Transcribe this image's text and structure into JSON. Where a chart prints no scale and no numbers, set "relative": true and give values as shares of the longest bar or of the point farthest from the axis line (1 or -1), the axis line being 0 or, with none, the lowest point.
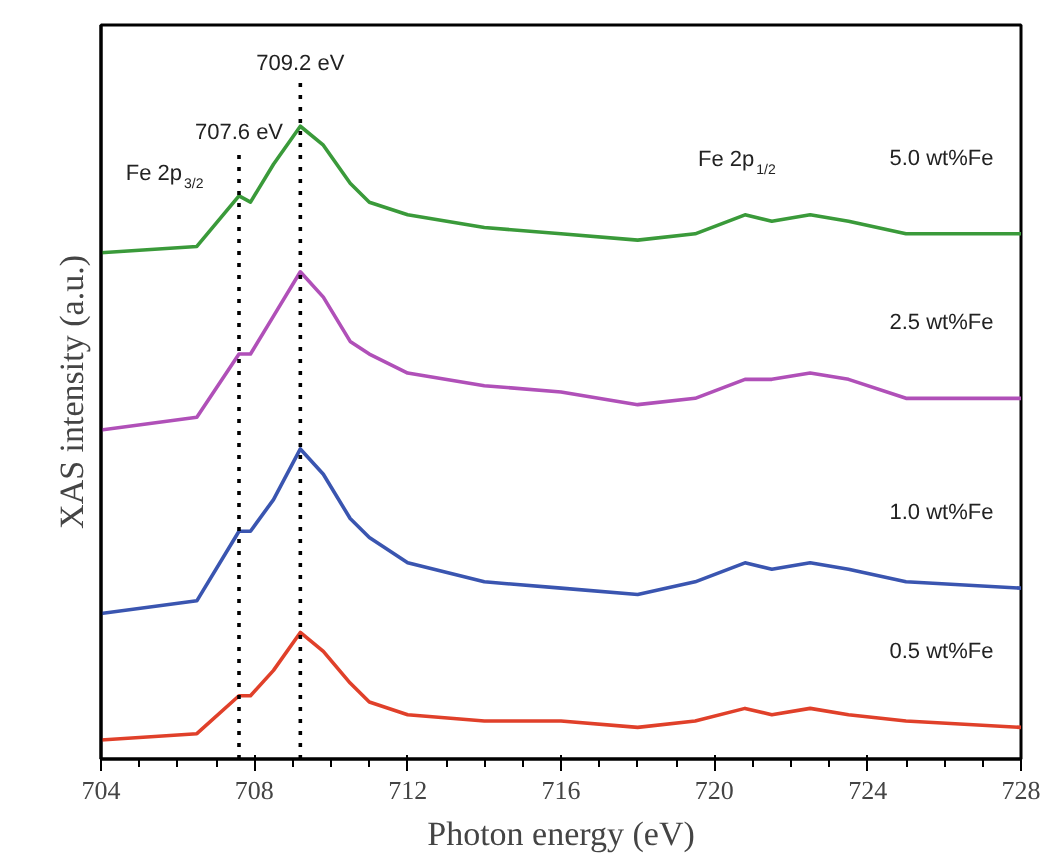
{
  "chart_data": {
    "type": "line",
    "relative": true,
    "xlabel": "Photon energy (eV)",
    "ylabel": "XAS intensity (a.u.)",
    "x": [
      704,
      706.5,
      707.6,
      707.9,
      708.5,
      709.2,
      709.8,
      710.5,
      711,
      712,
      714,
      716,
      718,
      719.5,
      720.8,
      721.5,
      722.5,
      723.5,
      725,
      728
    ],
    "xlim": [
      704,
      728
    ],
    "xticks": [
      704,
      708,
      712,
      716,
      720,
      724,
      728
    ],
    "grid": false,
    "series": [
      {
        "name": "5.0 wt%Fe",
        "color": "#3a9a3a",
        "values": [
          0.8,
          0.81,
          0.89,
          0.88,
          0.94,
          1.0,
          0.97,
          0.91,
          0.88,
          0.86,
          0.84,
          0.83,
          0.82,
          0.83,
          0.86,
          0.85,
          0.86,
          0.85,
          0.83,
          0.83
        ]
      },
      {
        "name": "2.5 wt%Fe",
        "color": "#b050b8",
        "values": [
          0.52,
          0.54,
          0.64,
          0.64,
          0.7,
          0.77,
          0.73,
          0.66,
          0.64,
          0.61,
          0.59,
          0.58,
          0.56,
          0.57,
          0.6,
          0.6,
          0.61,
          0.6,
          0.57,
          0.57
        ]
      },
      {
        "name": "1.0 wt%Fe",
        "color": "#3a55b0",
        "values": [
          0.23,
          0.25,
          0.36,
          0.36,
          0.41,
          0.49,
          0.45,
          0.38,
          0.35,
          0.31,
          0.28,
          0.27,
          0.26,
          0.28,
          0.31,
          0.3,
          0.31,
          0.3,
          0.28,
          0.27
        ]
      },
      {
        "name": "0.5 wt%Fe",
        "color": "#e0402a",
        "values": [
          0.03,
          0.04,
          0.1,
          0.1,
          0.14,
          0.2,
          0.17,
          0.12,
          0.09,
          0.07,
          0.06,
          0.06,
          0.05,
          0.06,
          0.08,
          0.07,
          0.08,
          0.07,
          0.06,
          0.05
        ]
      }
    ],
    "ref_lines": [
      {
        "axis": "x",
        "value": 707.6,
        "label": "707.6 eV",
        "line_style": "dotted",
        "color": "#000000"
      },
      {
        "axis": "x",
        "value": 709.2,
        "label": "709.2 eV",
        "line_style": "dotted",
        "color": "#000000"
      }
    ],
    "annotations": [
      "Fe 2p$_{3/2}$",
      "Fe 2p$_{1/2}$"
    ]
  }
}
